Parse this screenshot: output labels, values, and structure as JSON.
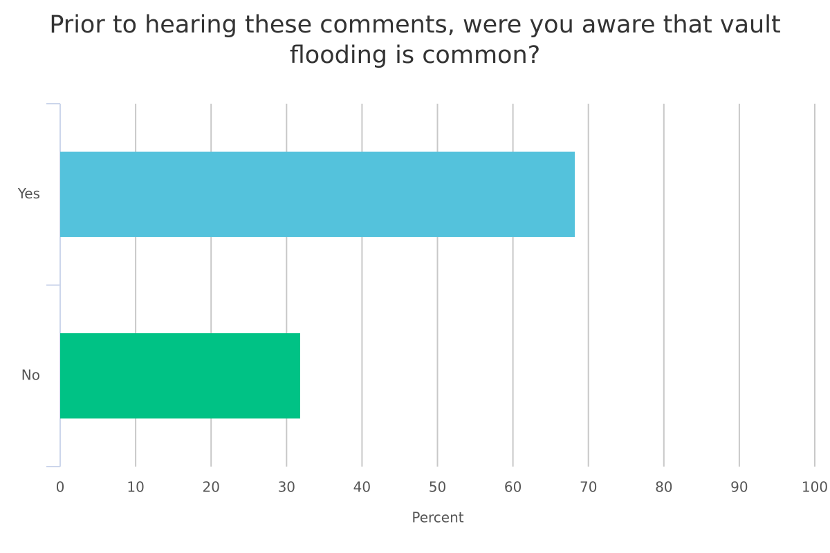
{
  "chart_data": {
    "type": "bar",
    "orientation": "horizontal",
    "title": "Prior to hearing these comments, were you aware that vault flooding is common?",
    "categories": [
      "Yes",
      "No"
    ],
    "values": [
      68.2,
      31.8
    ],
    "colors": [
      "#54c2dc",
      "#00c285"
    ],
    "x_label": "Percent",
    "xlim": [
      0,
      100
    ],
    "xticks": [
      0,
      10,
      20,
      30,
      40,
      50,
      60,
      70,
      80,
      90,
      100
    ],
    "grid": true
  }
}
